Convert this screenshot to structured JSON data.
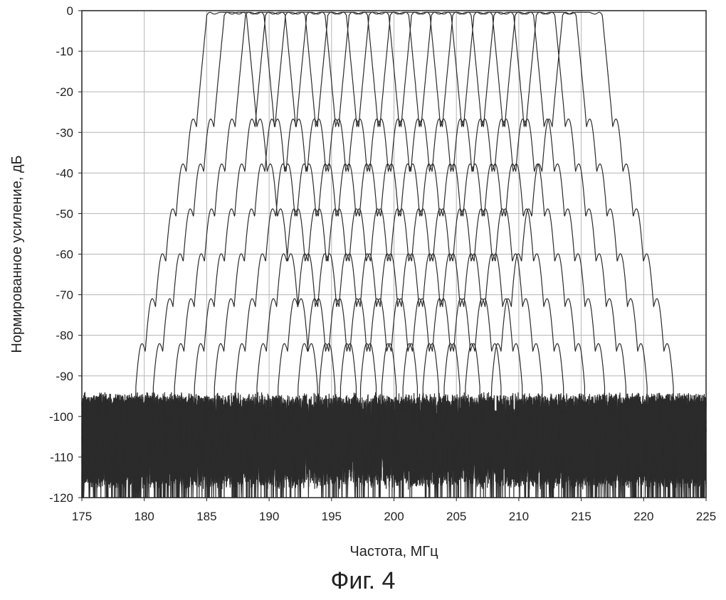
{
  "figure_caption": "Фиг. 4",
  "chart_data": {
    "type": "line",
    "xlabel": "Частота, МГц",
    "ylabel": "Нормированное усиление, дБ",
    "xlim": [
      175,
      225
    ],
    "ylim": [
      -120,
      0
    ],
    "x_ticks": [
      175,
      180,
      185,
      190,
      195,
      200,
      205,
      210,
      215,
      220,
      225
    ],
    "y_ticks": [
      0,
      -10,
      -20,
      -30,
      -40,
      -50,
      -60,
      -70,
      -80,
      -90,
      -100,
      -110,
      -120
    ],
    "x_tick_labels": [
      "175",
      "180",
      "185",
      "190",
      "195",
      "200",
      "205",
      "210",
      "215",
      "220",
      "225"
    ],
    "y_tick_labels": [
      "0",
      "-10",
      "-20",
      "-30",
      "-40",
      "-50",
      "-60",
      "-70",
      "-80",
      "-90",
      "-100",
      "-110",
      "-120"
    ],
    "grid": true,
    "line_color": "#2b2b2b",
    "passband_width_mhz": 3.2,
    "noise_floor_db": [
      -120,
      -94
    ],
    "series_center_frequencies_mhz": [
      186.6,
      188.0,
      189.7,
      191.3,
      192.9,
      194.6,
      196.3,
      198.0,
      199.6,
      201.3,
      203.0,
      204.6,
      206.3,
      208.0,
      209.6,
      211.3,
      213.0,
      215.1
    ]
  }
}
